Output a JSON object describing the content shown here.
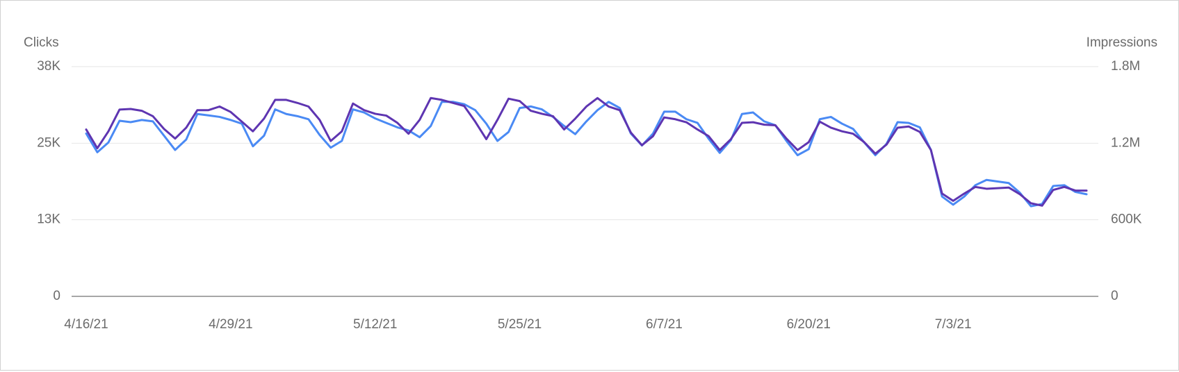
{
  "chart_data": {
    "type": "line",
    "categories": [
      "4/16/21",
      null,
      null,
      null,
      null,
      null,
      null,
      null,
      null,
      null,
      null,
      null,
      null,
      "4/29/21",
      null,
      null,
      null,
      null,
      null,
      null,
      null,
      null,
      null,
      null,
      null,
      null,
      "5/12/21",
      null,
      null,
      null,
      null,
      null,
      null,
      null,
      null,
      null,
      null,
      null,
      null,
      "5/25/21",
      null,
      null,
      null,
      null,
      null,
      null,
      null,
      null,
      null,
      null,
      null,
      null,
      "6/7/21",
      null,
      null,
      null,
      null,
      null,
      null,
      null,
      null,
      null,
      null,
      null,
      null,
      "6/20/21",
      null,
      null,
      null,
      null,
      null,
      null,
      null,
      null,
      null,
      null,
      null,
      null,
      "7/3/21",
      null,
      null,
      null,
      null,
      null,
      null,
      null,
      null,
      null,
      null,
      null,
      null
    ],
    "series": [
      {
        "name": "Clicks",
        "color": "#5e35b1",
        "axis": "y",
        "values": [
          27600,
          24500,
          27300,
          30900,
          31000,
          30700,
          29800,
          27700,
          26100,
          27900,
          30800,
          30800,
          31400,
          30500,
          28900,
          27300,
          29400,
          32500,
          32500,
          32000,
          31400,
          29200,
          25700,
          27300,
          31900,
          30800,
          30200,
          29900,
          28700,
          26900,
          29200,
          32800,
          32500,
          32000,
          31500,
          28900,
          26000,
          29200,
          32700,
          32300,
          30700,
          30200,
          29800,
          27600,
          29400,
          31400,
          32800,
          31400,
          30800,
          27100,
          25000,
          26500,
          29600,
          29300,
          28800,
          27600,
          26500,
          24200,
          26000,
          28700,
          28800,
          28400,
          28300,
          26100,
          24200,
          25500,
          28900,
          27900,
          27300,
          26900,
          25500,
          23600,
          25100,
          27900,
          28100,
          27200,
          24200,
          17000,
          15800,
          17000,
          18100,
          17800,
          17900,
          18000,
          16900,
          15400,
          15000,
          17600,
          18100,
          17500,
          17500
        ]
      },
      {
        "name": "Impressions",
        "color": "#4a8af4",
        "axis": "y2",
        "values": [
          1276000,
          1129000,
          1206000,
          1376000,
          1365000,
          1382000,
          1371000,
          1259000,
          1147000,
          1229000,
          1429000,
          1418000,
          1406000,
          1382000,
          1353000,
          1176000,
          1259000,
          1465000,
          1429000,
          1412000,
          1388000,
          1265000,
          1165000,
          1218000,
          1465000,
          1441000,
          1394000,
          1359000,
          1324000,
          1300000,
          1247000,
          1335000,
          1524000,
          1524000,
          1506000,
          1459000,
          1353000,
          1218000,
          1288000,
          1476000,
          1488000,
          1465000,
          1406000,
          1335000,
          1271000,
          1371000,
          1459000,
          1524000,
          1476000,
          1276000,
          1182000,
          1276000,
          1447000,
          1447000,
          1388000,
          1359000,
          1235000,
          1124000,
          1224000,
          1429000,
          1441000,
          1371000,
          1341000,
          1218000,
          1106000,
          1153000,
          1388000,
          1406000,
          1353000,
          1312000,
          1206000,
          1106000,
          1194000,
          1365000,
          1359000,
          1324000,
          1147000,
          782000,
          718000,
          782000,
          871000,
          912000,
          900000,
          888000,
          812000,
          706000,
          724000,
          865000,
          871000,
          818000,
          800000
        ]
      }
    ],
    "ylim": [
      0,
      38000
    ],
    "yticks": [
      0,
      {
        "value": 12667,
        "label": "13K"
      },
      {
        "value": 25333,
        "label": "25K"
      },
      {
        "value": 38000,
        "label": "38K"
      }
    ],
    "y2lim": [
      0,
      1800000
    ],
    "y2ticks": [
      0,
      {
        "value": 600000,
        "label": "600K"
      },
      {
        "value": 1200000,
        "label": "1.2M"
      },
      {
        "value": 1800000,
        "label": "1.8M"
      }
    ],
    "grid": true
  }
}
